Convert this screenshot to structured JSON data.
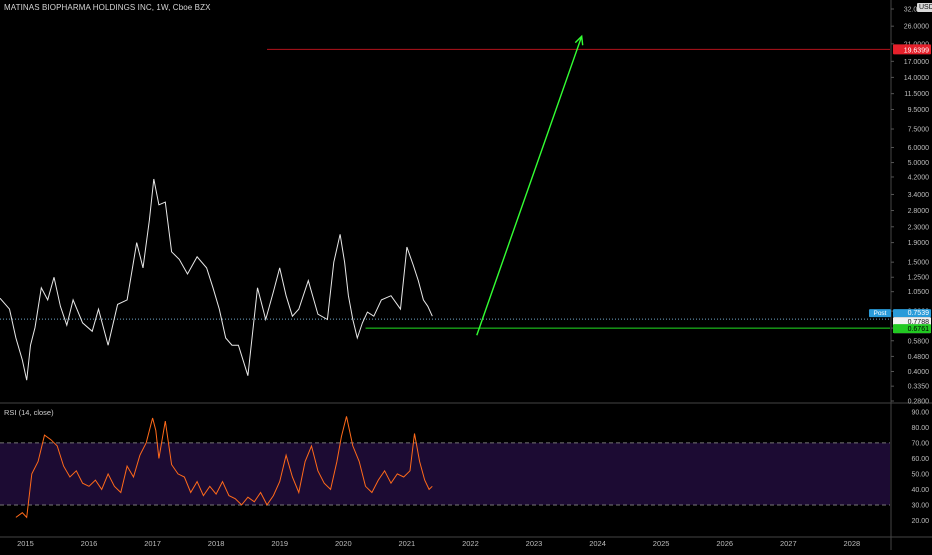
{
  "header": {
    "title": "MATINAS BIOPHARMA HOLDINGS INC, 1W, Cboe BZX",
    "currency": "USD"
  },
  "colors": {
    "background": "#000000",
    "price_line": "#e8e8e8",
    "rsi_line": "#ff6a1a",
    "rsi_band": "#1c0b33",
    "target_line": "#b3121b",
    "target_tag": "#e5202b",
    "support_line": "#22e022",
    "support_tag": "#22c922",
    "projection_arrow": "#33ff33",
    "post_tag": "#2a9bd9",
    "last_price_line": "#6fa6c8"
  },
  "chart_data": [
    {
      "type": "line",
      "title": "MATINAS BIOPHARMA HOLDINGS INC, 1W, Cboe BZX",
      "y_scale": "log",
      "ylim": [
        0.28,
        32.0
      ],
      "xlim": [
        2014.6,
        2028.6
      ],
      "y_tick_labels": [
        "32.0000",
        "26.0000",
        "21.0000",
        "17.0000",
        "14.0000",
        "11.5000",
        "9.5000",
        "7.5000",
        "6.0000",
        "5.0000",
        "4.2000",
        "3.4000",
        "2.8000",
        "2.3000",
        "1.9000",
        "1.5000",
        "1.2500",
        "1.0500",
        "0.8300",
        "0.6761",
        "0.5800",
        "0.4800",
        "0.4000",
        "0.3350",
        "0.2800"
      ],
      "y_ticks": [
        32,
        26,
        21,
        17,
        14,
        11.5,
        9.5,
        7.5,
        6,
        5,
        4.2,
        3.4,
        2.8,
        2.3,
        1.9,
        1.5,
        1.25,
        1.05,
        0.83,
        0.6761,
        0.58,
        0.48,
        0.4,
        0.335,
        0.28
      ],
      "x_tick_labels": [
        "2015",
        "2016",
        "2017",
        "2018",
        "2019",
        "2020",
        "2021",
        "2022",
        "2023",
        "2024",
        "2025",
        "2026",
        "2027",
        "2028"
      ],
      "x_ticks": [
        2015,
        2016,
        2017,
        2018,
        2019,
        2020,
        2021,
        2022,
        2023,
        2024,
        2025,
        2026,
        2027,
        2028
      ],
      "series": [
        {
          "x": [
            2014.6,
            2014.75,
            2014.85,
            2014.95,
            2015.02,
            2015.08,
            2015.15,
            2015.25,
            2015.35,
            2015.45,
            2015.55,
            2015.65,
            2015.75,
            2015.9,
            2016.05,
            2016.15,
            2016.3,
            2016.45,
            2016.6,
            2016.75,
            2016.85,
            2016.95,
            2017.02,
            2017.1,
            2017.2,
            2017.3,
            2017.42,
            2017.55,
            2017.7,
            2017.85,
            2017.95,
            2018.05,
            2018.15,
            2018.25,
            2018.35,
            2018.5,
            2018.65,
            2018.78,
            2018.9,
            2019.0,
            2019.1,
            2019.2,
            2019.3,
            2019.45,
            2019.6,
            2019.75,
            2019.85,
            2019.95,
            2020.02,
            2020.08,
            2020.15,
            2020.22,
            2020.3,
            2020.38,
            2020.48,
            2020.6,
            2020.75,
            2020.9,
            2021.0,
            2021.1,
            2021.18,
            2021.26,
            2021.33,
            2021.4
          ],
          "y": [
            0.97,
            0.85,
            0.6,
            0.46,
            0.36,
            0.55,
            0.68,
            1.1,
            0.95,
            1.25,
            0.88,
            0.7,
            0.95,
            0.72,
            0.65,
            0.85,
            0.55,
            0.9,
            0.95,
            1.9,
            1.4,
            2.5,
            4.1,
            3.0,
            3.1,
            1.7,
            1.55,
            1.3,
            1.6,
            1.4,
            1.1,
            0.85,
            0.6,
            0.55,
            0.55,
            0.38,
            1.1,
            0.75,
            1.05,
            1.4,
            1.0,
            0.78,
            0.85,
            1.2,
            0.8,
            0.75,
            1.5,
            2.1,
            1.5,
            1.0,
            0.75,
            0.6,
            0.72,
            0.82,
            0.78,
            0.95,
            1.0,
            0.85,
            1.8,
            1.45,
            1.2,
            0.95,
            0.88,
            0.78
          ]
        }
      ],
      "annotations": {
        "last_price": 0.7539,
        "post_label": "Post",
        "post_value": "0.7539",
        "current_price": "0.7788",
        "countdown": "2d 0h",
        "support_value": "0.6761",
        "support_level": 0.6761,
        "support_from_x": 2020.35,
        "target_value": "19.6399",
        "target_level": 19.6399,
        "target_from_x": 2018.8,
        "projection_start": [
          2022.1,
          0.62
        ],
        "projection_end": [
          2023.75,
          23.0
        ]
      }
    },
    {
      "type": "line",
      "title": "RSI (14, close)",
      "ylim": [
        10,
        95
      ],
      "y_tick_labels": [
        "90.00",
        "80.00",
        "70.00",
        "60.00",
        "50.00",
        "40.00",
        "30.00",
        "20.00"
      ],
      "y_ticks": [
        90,
        80,
        70,
        60,
        50,
        40,
        30,
        20
      ],
      "band": [
        30,
        70
      ],
      "series": [
        {
          "x": [
            2014.85,
            2014.95,
            2015.02,
            2015.1,
            2015.2,
            2015.3,
            2015.4,
            2015.5,
            2015.6,
            2015.7,
            2015.8,
            2015.9,
            2016.0,
            2016.1,
            2016.2,
            2016.3,
            2016.4,
            2016.5,
            2016.6,
            2016.7,
            2016.8,
            2016.9,
            2017.0,
            2017.05,
            2017.1,
            2017.2,
            2017.3,
            2017.4,
            2017.5,
            2017.6,
            2017.7,
            2017.8,
            2017.9,
            2018.0,
            2018.1,
            2018.2,
            2018.3,
            2018.4,
            2018.5,
            2018.6,
            2018.7,
            2018.8,
            2018.9,
            2019.0,
            2019.1,
            2019.2,
            2019.3,
            2019.4,
            2019.5,
            2019.6,
            2019.7,
            2019.8,
            2019.9,
            2019.97,
            2020.05,
            2020.15,
            2020.25,
            2020.35,
            2020.45,
            2020.55,
            2020.65,
            2020.75,
            2020.85,
            2020.95,
            2021.05,
            2021.12,
            2021.2,
            2021.28,
            2021.35,
            2021.4
          ],
          "y": [
            22,
            25,
            22,
            50,
            58,
            75,
            72,
            68,
            55,
            48,
            52,
            44,
            42,
            46,
            40,
            50,
            42,
            38,
            55,
            48,
            62,
            70,
            86,
            78,
            60,
            84,
            56,
            50,
            48,
            38,
            45,
            36,
            42,
            37,
            45,
            36,
            34,
            30,
            35,
            32,
            38,
            30,
            36,
            45,
            62,
            48,
            38,
            58,
            68,
            52,
            44,
            40,
            58,
            74,
            87,
            68,
            58,
            42,
            38,
            46,
            52,
            44,
            50,
            48,
            52,
            76,
            58,
            46,
            40,
            42
          ]
        }
      ]
    }
  ]
}
